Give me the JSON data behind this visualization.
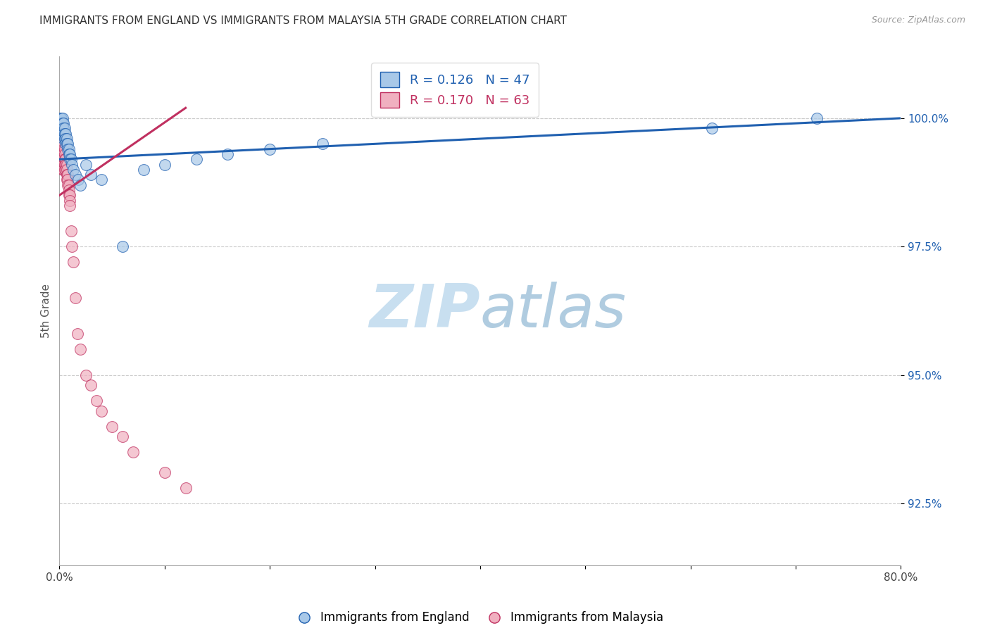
{
  "title": "IMMIGRANTS FROM ENGLAND VS IMMIGRANTS FROM MALAYSIA 5TH GRADE CORRELATION CHART",
  "source_text": "Source: ZipAtlas.com",
  "ylabel": "5th Grade",
  "x_min": 0.0,
  "x_max": 0.8,
  "y_min": 91.3,
  "y_max": 101.2,
  "yticks": [
    92.5,
    95.0,
    97.5,
    100.0
  ],
  "ytick_labels": [
    "92.5%",
    "95.0%",
    "97.5%",
    "100.0%"
  ],
  "xticks": [
    0.0,
    0.1,
    0.2,
    0.3,
    0.4,
    0.5,
    0.6,
    0.7,
    0.8
  ],
  "xtick_labels": [
    "0.0%",
    "",
    "",
    "",
    "",
    "",
    "",
    "",
    "80.0%"
  ],
  "legend_england": "Immigrants from England",
  "legend_malaysia": "Immigrants from Malaysia",
  "R_england": "0.126",
  "N_england": "47",
  "R_malaysia": "0.170",
  "N_malaysia": "63",
  "color_england": "#a8c8e8",
  "color_malaysia": "#f0b0c0",
  "line_color_england": "#2060b0",
  "line_color_malaysia": "#c03060",
  "watermark_zip": "ZIP",
  "watermark_atlas": "atlas",
  "watermark_color_zip": "#c8dff0",
  "watermark_color_atlas": "#b0cce0",
  "england_x": [
    0.001,
    0.001,
    0.001,
    0.002,
    0.002,
    0.002,
    0.002,
    0.003,
    0.003,
    0.003,
    0.003,
    0.004,
    0.004,
    0.004,
    0.004,
    0.005,
    0.005,
    0.005,
    0.006,
    0.006,
    0.006,
    0.007,
    0.007,
    0.008,
    0.008,
    0.009,
    0.009,
    0.01,
    0.01,
    0.011,
    0.012,
    0.013,
    0.015,
    0.018,
    0.02,
    0.025,
    0.03,
    0.04,
    0.06,
    0.08,
    0.1,
    0.13,
    0.16,
    0.2,
    0.25,
    0.62,
    0.72
  ],
  "england_y": [
    100.0,
    100.0,
    99.9,
    100.0,
    99.9,
    99.8,
    99.7,
    100.0,
    99.9,
    99.8,
    99.7,
    99.9,
    99.8,
    99.7,
    99.6,
    99.8,
    99.7,
    99.6,
    99.7,
    99.6,
    99.5,
    99.6,
    99.5,
    99.5,
    99.4,
    99.4,
    99.3,
    99.3,
    99.2,
    99.2,
    99.1,
    99.0,
    98.9,
    98.8,
    98.7,
    99.1,
    98.9,
    98.8,
    97.5,
    99.0,
    99.1,
    99.2,
    99.3,
    99.4,
    99.5,
    99.8,
    100.0
  ],
  "malaysia_x": [
    0.001,
    0.001,
    0.001,
    0.001,
    0.001,
    0.002,
    0.002,
    0.002,
    0.002,
    0.002,
    0.002,
    0.002,
    0.003,
    0.003,
    0.003,
    0.003,
    0.003,
    0.003,
    0.003,
    0.003,
    0.003,
    0.004,
    0.004,
    0.004,
    0.004,
    0.004,
    0.004,
    0.005,
    0.005,
    0.005,
    0.005,
    0.005,
    0.006,
    0.006,
    0.006,
    0.007,
    0.007,
    0.007,
    0.007,
    0.008,
    0.008,
    0.008,
    0.009,
    0.009,
    0.009,
    0.01,
    0.01,
    0.01,
    0.011,
    0.012,
    0.013,
    0.015,
    0.017,
    0.02,
    0.025,
    0.03,
    0.035,
    0.04,
    0.05,
    0.06,
    0.07,
    0.1,
    0.12
  ],
  "malaysia_y": [
    99.8,
    99.7,
    99.6,
    99.5,
    99.4,
    99.8,
    99.7,
    99.6,
    99.5,
    99.4,
    99.3,
    99.2,
    99.8,
    99.7,
    99.6,
    99.5,
    99.4,
    99.3,
    99.2,
    99.1,
    99.0,
    99.5,
    99.4,
    99.3,
    99.2,
    99.1,
    99.0,
    99.4,
    99.3,
    99.2,
    99.1,
    99.0,
    99.2,
    99.1,
    99.0,
    99.1,
    99.0,
    98.9,
    98.8,
    98.9,
    98.8,
    98.7,
    98.7,
    98.6,
    98.5,
    98.5,
    98.4,
    98.3,
    97.8,
    97.5,
    97.2,
    96.5,
    95.8,
    95.5,
    95.0,
    94.8,
    94.5,
    94.3,
    94.0,
    93.8,
    93.5,
    93.1,
    92.8
  ],
  "eng_line_x0": 0.0,
  "eng_line_x1": 0.8,
  "eng_line_y0": 99.2,
  "eng_line_y1": 100.0,
  "mal_line_x0": 0.0,
  "mal_line_x1": 0.12,
  "mal_line_y0": 98.5,
  "mal_line_y1": 100.2
}
